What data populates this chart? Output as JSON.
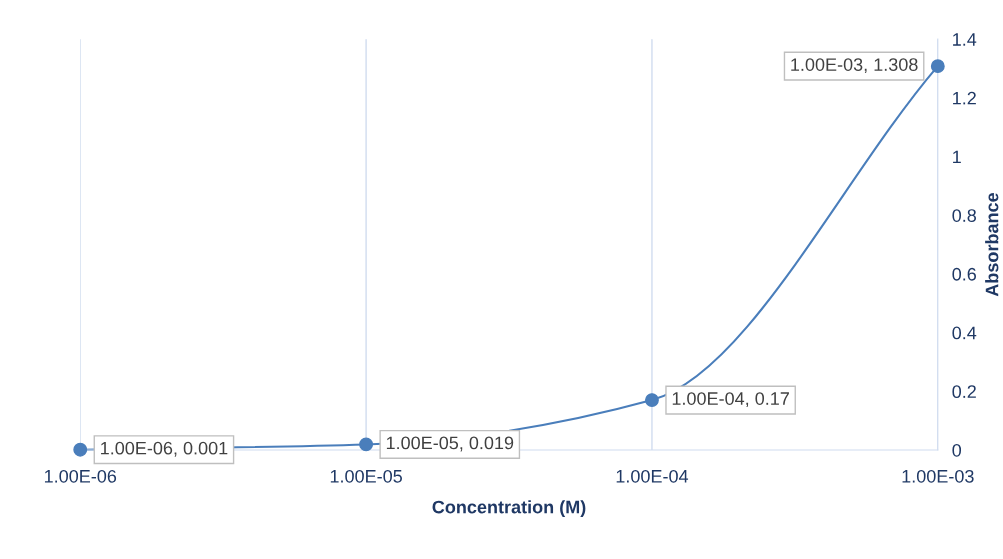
{
  "chart_data": {
    "type": "line",
    "xlabel": "Concentration (M)",
    "ylabel": "Absorbance",
    "x": [
      1e-06,
      1e-05,
      0.0001,
      0.001
    ],
    "series": [
      {
        "color": "#4a7ebb",
        "values": [
          0.001,
          0.019,
          0.17,
          1.308
        ],
        "value_labels": [
          "1.00E-06, 0.001",
          "1.00E-05, 0.019",
          "1.00E-04, 0.17",
          "1.00E-03, 1.308"
        ]
      }
    ],
    "log": "x",
    "xlim": [
      1e-06,
      0.001
    ],
    "xticks": [
      {
        "value": 1e-06,
        "label": "1.00E-06"
      },
      {
        "value": 1e-05,
        "label": "1.00E-05"
      },
      {
        "value": 0.0001,
        "label": "1.00E-04"
      },
      {
        "value": 0.001,
        "label": "1.00E-03"
      }
    ],
    "ylim": [
      0,
      1.4
    ],
    "yticks": [
      0,
      0.2,
      0.4,
      0.6,
      0.8,
      1,
      1.2,
      1.4
    ],
    "grid": "x",
    "marker": "circle",
    "line_style": "solid",
    "legend": false
  }
}
